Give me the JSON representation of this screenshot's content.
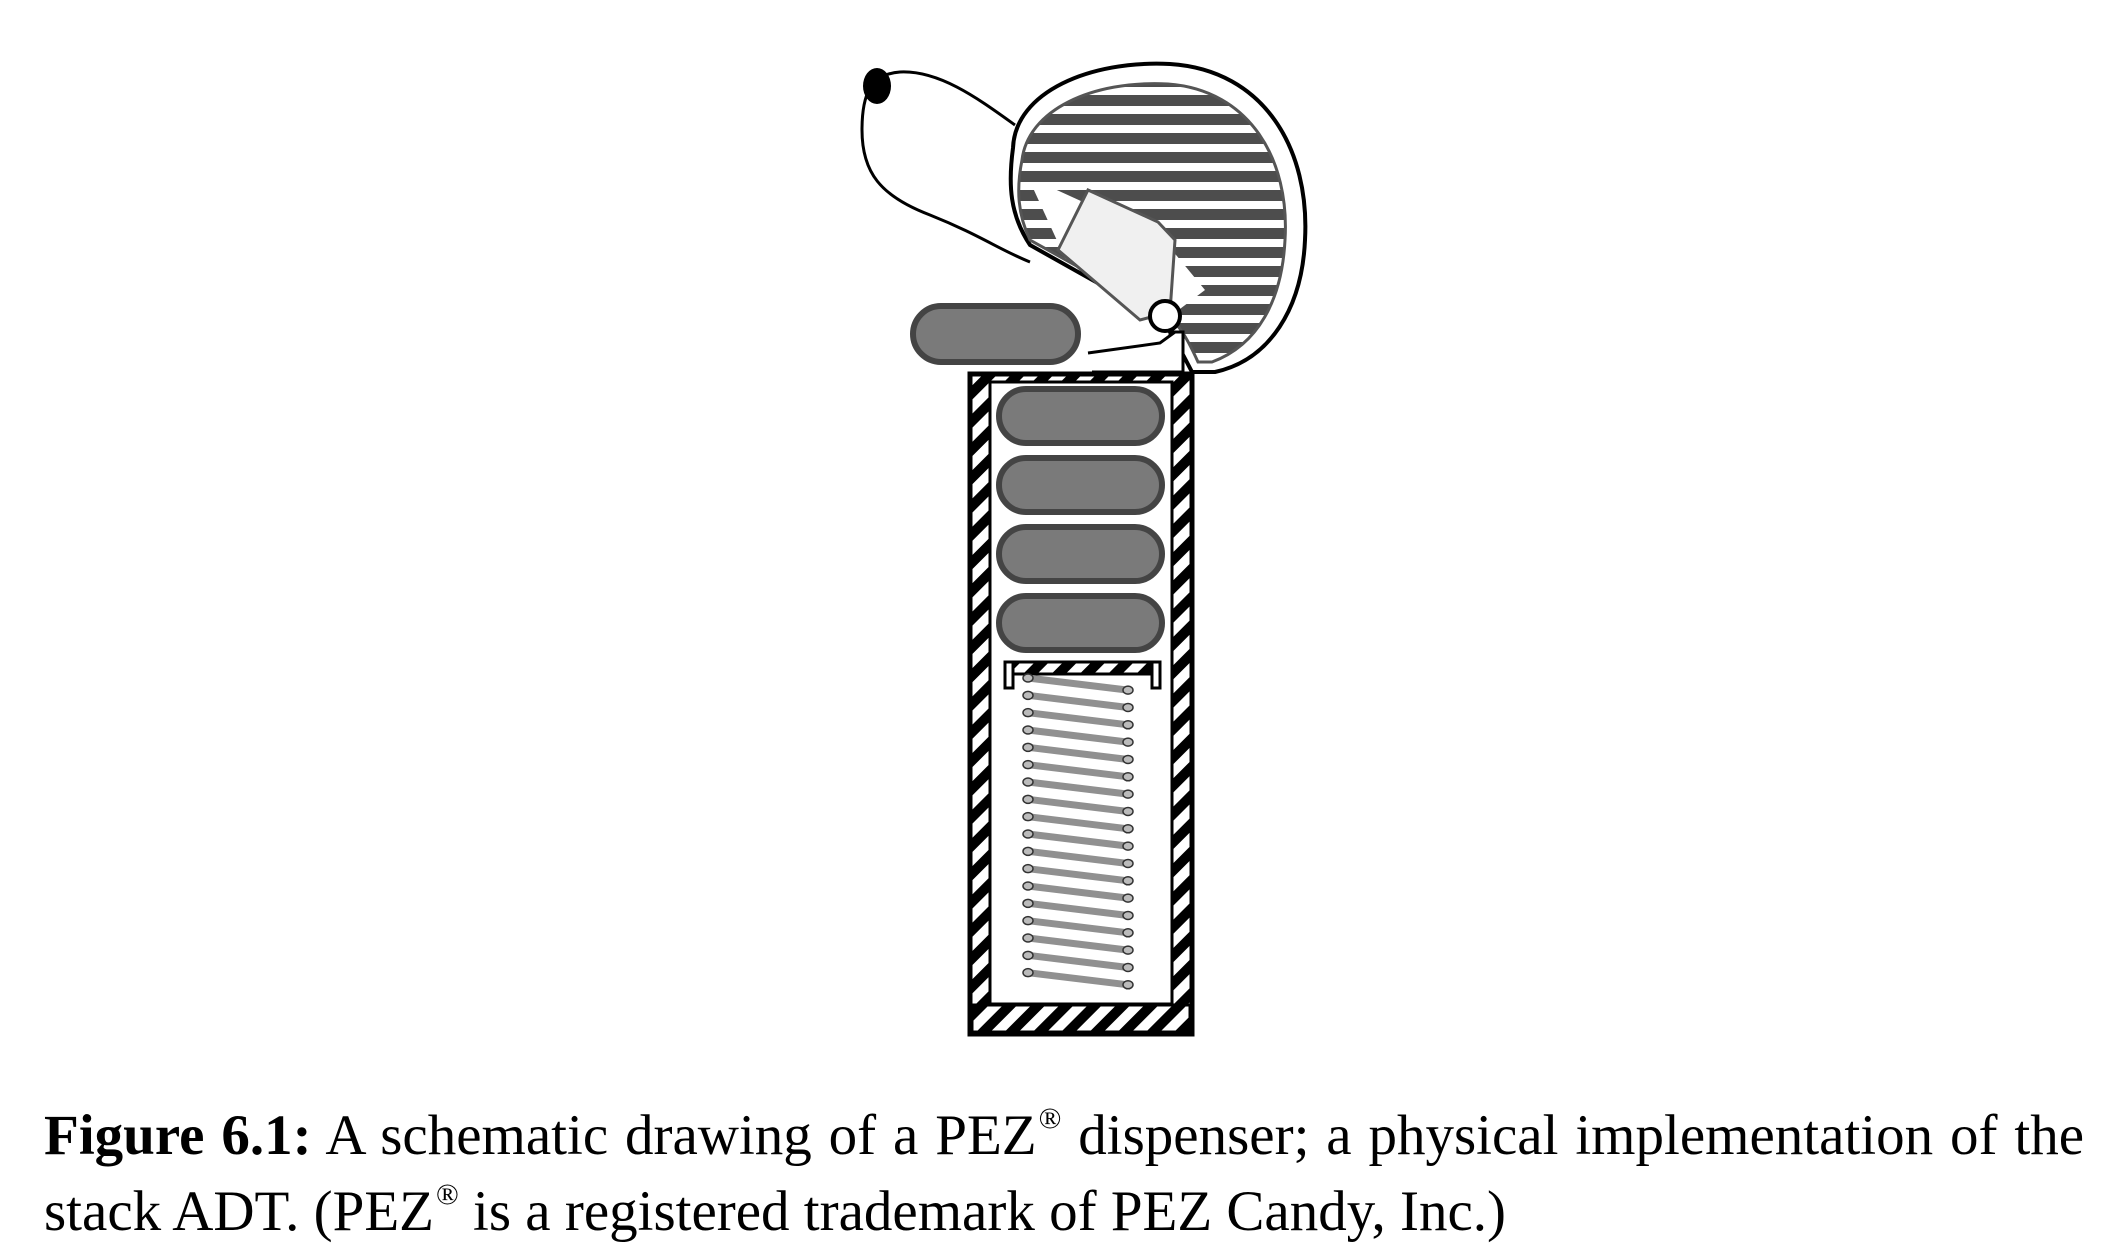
{
  "figure": {
    "stacked_candies": 4,
    "colors": {
      "candy_fill": "#7a7a7a",
      "candy_stroke": "#444444",
      "outline": "#000000",
      "head_stripe": "#4d4d4d",
      "mouth_fill": "#f0f0f0",
      "spring": "#909090",
      "background": "#ffffff"
    }
  },
  "caption": {
    "label": "Figure 6.1:",
    "line1_before_mark": "A schematic drawing of a PEZ",
    "mark1": "®",
    "line1_after_mark": " dispenser; a physical implementation",
    "line2_before_mark": "of the stack ADT. (PEZ",
    "mark2": "®",
    "line2_after_mark": " is a registered trademark of PEZ Candy, Inc.)"
  }
}
